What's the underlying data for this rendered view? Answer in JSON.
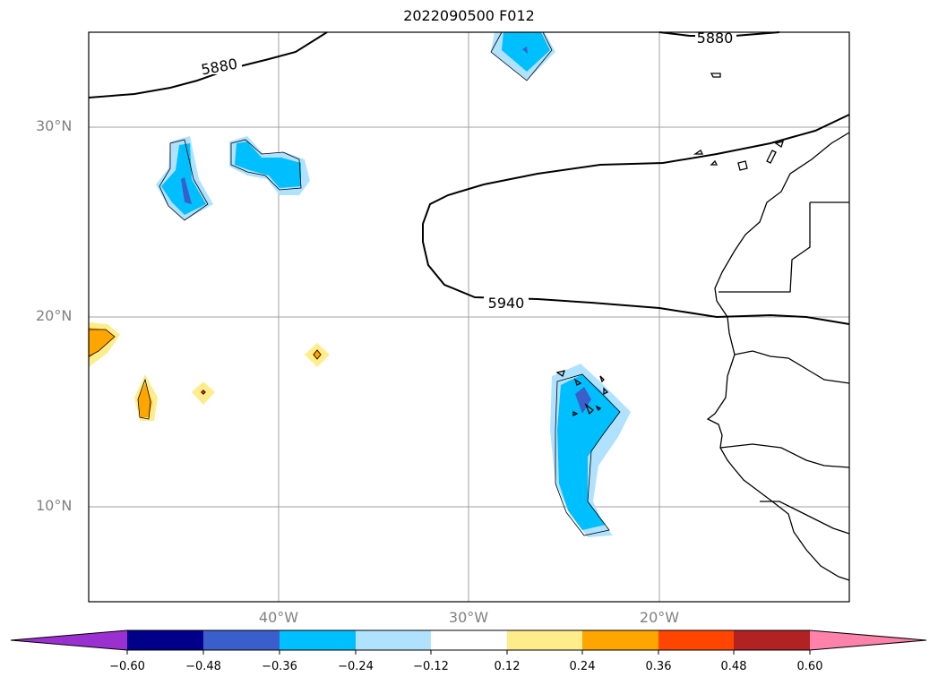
{
  "title": "2022090500 F012",
  "lat_labels": [
    "30°N",
    "20°N",
    "10°N"
  ],
  "lon_labels": [
    "40°W",
    "30°W",
    "20°W"
  ],
  "contour_labels": [
    "5880",
    "5880",
    "5940"
  ],
  "colorbar": {
    "ticks": [
      "−0.60",
      "−0.48",
      "−0.36",
      "−0.24",
      "−0.12",
      "0.12",
      "0.24",
      "0.36",
      "0.48",
      "0.60"
    ],
    "colors": [
      "#9b30d0",
      "#00008b",
      "#3a5fcd",
      "#00bfff",
      "#b0e2ff",
      "#ffffff",
      "#ffec8b",
      "#ffa500",
      "#ff4500",
      "#b22222",
      "#ff82ab"
    ]
  },
  "fill_colors": {
    "light_blue": "#b0e2ff",
    "blue": "#00bfff",
    "dark_blue": "#3a5fcd",
    "yellow": "#ffec8b",
    "orange": "#ffa500",
    "dark_orange": "#ff4500"
  }
}
